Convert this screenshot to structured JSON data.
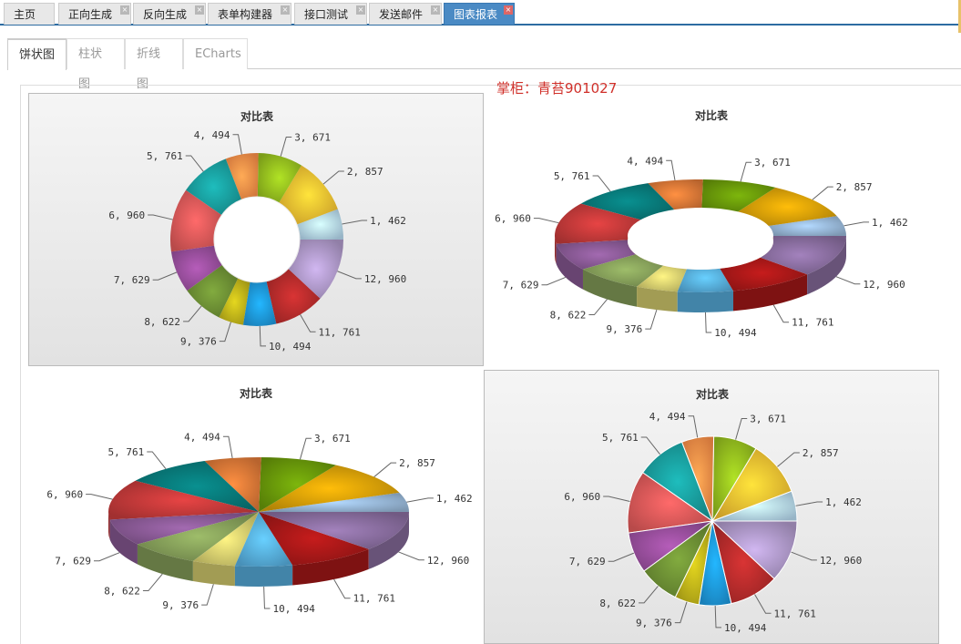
{
  "tabs": [
    {
      "label": "主页",
      "closable": false,
      "active": false
    },
    {
      "label": "正向生成",
      "closable": true,
      "active": false
    },
    {
      "label": "反向生成",
      "closable": true,
      "active": false
    },
    {
      "label": "表单构建器",
      "closable": true,
      "active": false
    },
    {
      "label": "接口测试",
      "closable": true,
      "active": false
    },
    {
      "label": "发送邮件",
      "closable": true,
      "active": false
    },
    {
      "label": "图表报表",
      "closable": true,
      "active": true
    }
  ],
  "close_glyph": "×",
  "subtabs": [
    {
      "label": "饼状图",
      "active": true
    },
    {
      "label": "柱状图",
      "active": false
    },
    {
      "label": "折线图",
      "active": false
    },
    {
      "label": "ECharts",
      "active": false
    }
  ],
  "watermark": "掌柜：青苔901027",
  "chart_data": [
    {
      "type": "pie",
      "style": "3d-donut",
      "title": "对比表",
      "categories": [
        "1",
        "2",
        "3",
        "4",
        "5",
        "6",
        "7",
        "8",
        "9",
        "10",
        "11",
        "12"
      ],
      "values": [
        462,
        857,
        671,
        494,
        761,
        960,
        629,
        622,
        376,
        494,
        761,
        960
      ],
      "labels": [
        "1, 462",
        "2, 857",
        "3, 671",
        "4, 494",
        "5, 761",
        "6, 960",
        "7, 629",
        "8, 622",
        "9, 376",
        "10, 494",
        "11, 761",
        "12, 960"
      ],
      "colors": [
        "#b8dcf2",
        "#f6c132",
        "#96c01f",
        "#ff9149",
        "#19a0a0",
        "#e05a5a",
        "#9a4f9e",
        "#6e9135",
        "#c2b61a",
        "#1e9be0",
        "#b82c2c",
        "#b19bcc"
      ]
    },
    {
      "type": "pie",
      "style": "3d-donut-tilted",
      "title": "对比表",
      "categories": [
        "1",
        "2",
        "3",
        "4",
        "5",
        "6",
        "7",
        "8",
        "9",
        "10",
        "11",
        "12"
      ],
      "values": [
        462,
        857,
        671,
        494,
        761,
        960,
        629,
        622,
        376,
        494,
        761,
        960
      ],
      "labels": [
        "1, 462",
        "2, 857",
        "3, 671",
        "4, 494",
        "5, 761",
        "6, 960",
        "7, 629",
        "8, 622",
        "9, 376",
        "10, 494",
        "11, 761",
        "12, 960"
      ],
      "colors": [
        "#98b8d8",
        "#d8a008",
        "#6a9a0a",
        "#e07a38",
        "#087a7a",
        "#c43a3a",
        "#8a5a96",
        "#86a05a",
        "#d8d070",
        "#58b0e0",
        "#a81818",
        "#8a6ea0"
      ]
    },
    {
      "type": "pie",
      "style": "3d-tilted",
      "title": "对比表",
      "categories": [
        "1",
        "2",
        "3",
        "4",
        "5",
        "6",
        "7",
        "8",
        "9",
        "10",
        "11",
        "12"
      ],
      "values": [
        462,
        857,
        671,
        494,
        761,
        960,
        629,
        622,
        376,
        494,
        761,
        960
      ],
      "labels": [
        "1, 462",
        "2, 857",
        "3, 671",
        "4, 494",
        "5, 761",
        "6, 960",
        "7, 629",
        "8, 622",
        "9, 376",
        "10, 494",
        "11, 761",
        "12, 960"
      ],
      "colors": [
        "#98b8d8",
        "#d8a008",
        "#6a9a0a",
        "#e07a38",
        "#087a7a",
        "#c43a3a",
        "#8a5a96",
        "#86a05a",
        "#d8d070",
        "#58b0e0",
        "#a81818",
        "#8a6ea0"
      ]
    },
    {
      "type": "pie",
      "style": "3d",
      "title": "对比表",
      "categories": [
        "1",
        "2",
        "3",
        "4",
        "5",
        "6",
        "7",
        "8",
        "9",
        "10",
        "11",
        "12"
      ],
      "values": [
        462,
        857,
        671,
        494,
        761,
        960,
        629,
        622,
        376,
        494,
        761,
        960
      ],
      "labels": [
        "1, 462",
        "2, 857",
        "3, 671",
        "4, 494",
        "5, 761",
        "6, 960",
        "7, 629",
        "8, 622",
        "9, 376",
        "10, 494",
        "11, 761",
        "12, 960"
      ],
      "colors": [
        "#b8dcf2",
        "#f6c132",
        "#96c01f",
        "#ff9149",
        "#19a0a0",
        "#e05a5a",
        "#9a4f9e",
        "#6e9135",
        "#c2b61a",
        "#1e9be0",
        "#b82c2c",
        "#b19bcc"
      ]
    }
  ]
}
